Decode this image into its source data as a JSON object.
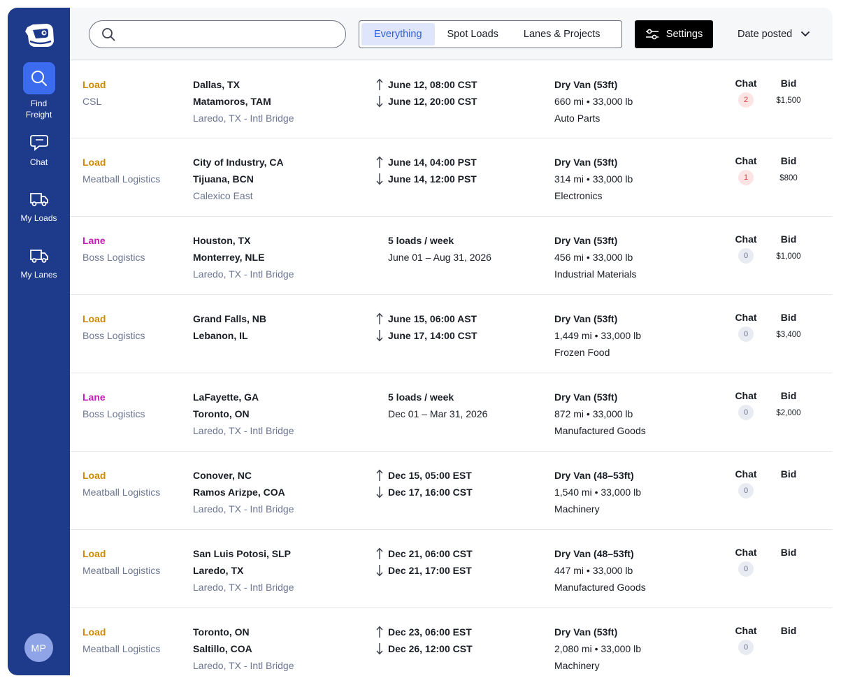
{
  "sidebar": {
    "items": [
      {
        "label": "Find\nFreight",
        "icon": "search-icon",
        "active": true
      },
      {
        "label": "Chat",
        "icon": "chat-icon",
        "active": false
      },
      {
        "label": "My Loads",
        "icon": "truck-icon",
        "active": false
      },
      {
        "label": "My Lanes",
        "icon": "truck-icon",
        "active": false
      }
    ],
    "avatar_initials": "MP"
  },
  "header": {
    "search_placeholder": "",
    "tabs": [
      {
        "label": "Everything",
        "active": true
      },
      {
        "label": "Spot Loads",
        "active": false
      },
      {
        "label": "Lanes & Projects",
        "active": false
      }
    ],
    "settings_label": "Settings",
    "sort_label": "Date posted"
  },
  "colors": {
    "sidebar": "#1e3a8a",
    "active_nav": "#3b6cf0",
    "load": "#c98a06",
    "lane": "#c21db5",
    "active_tab_text": "#2f5fd8"
  },
  "rows": [
    {
      "type": "Load",
      "company": "CSL",
      "origin": "Dallas, TX",
      "destination": "Matamoros, TAM",
      "crossing": "Laredo, TX - Intl Bridge",
      "pickup": "June 12, 08:00 CST",
      "delivery": "June 12, 20:00 CST",
      "schedule": "",
      "range": "",
      "equipment": "Dry Van  (53ft)",
      "distance_weight": "660 mi • 33,000 lb",
      "commodity": "Auto Parts",
      "chat_label": "Chat",
      "chat_count": "2",
      "chat_unread": true,
      "bid_label": "Bid",
      "bid": "$1,500"
    },
    {
      "type": "Load",
      "company": "Meatball Logistics",
      "origin": "City of Industry, CA",
      "destination": "Tijuana, BCN",
      "crossing": "Calexico East",
      "pickup": "June 14, 04:00 PST",
      "delivery": "June 14, 12:00 PST",
      "schedule": "",
      "range": "",
      "equipment": "Dry Van  (53ft)",
      "distance_weight": "314 mi • 33,000 lb",
      "commodity": "Electronics",
      "chat_label": "Chat",
      "chat_count": "1",
      "chat_unread": true,
      "bid_label": "Bid",
      "bid": "$800"
    },
    {
      "type": "Lane",
      "company": "Boss Logistics",
      "origin": "Houston, TX",
      "destination": "Monterrey, NLE",
      "crossing": "Laredo, TX - Intl Bridge",
      "pickup": "",
      "delivery": "",
      "schedule": "5 loads / week",
      "range": "June 01 – Aug 31, 2026",
      "equipment": "Dry Van  (53ft)",
      "distance_weight": "456 mi • 33,000 lb",
      "commodity": "Industrial Materials",
      "chat_label": "Chat",
      "chat_count": "0",
      "chat_unread": false,
      "bid_label": "Bid",
      "bid": "$1,000"
    },
    {
      "type": "Load",
      "company": "Boss Logistics",
      "origin": "Grand Falls, NB",
      "destination": "Lebanon, IL",
      "crossing": "",
      "pickup": "June 15, 06:00 AST",
      "delivery": "June 17, 14:00 CST",
      "schedule": "",
      "range": "",
      "equipment": "Dry Van  (53ft)",
      "distance_weight": "1,449 mi • 33,000 lb",
      "commodity": "Frozen Food",
      "chat_label": "Chat",
      "chat_count": "0",
      "chat_unread": false,
      "bid_label": "Bid",
      "bid": "$3,400"
    },
    {
      "type": "Lane",
      "company": "Boss Logistics",
      "origin": "LaFayette, GA",
      "destination": "Toronto, ON",
      "crossing": "Laredo, TX - Intl Bridge",
      "pickup": "",
      "delivery": "",
      "schedule": "5 loads / week",
      "range": "Dec 01 – Mar 31, 2026",
      "equipment": "Dry Van  (53ft)",
      "distance_weight": "872 mi • 33,000 lb",
      "commodity": "Manufactured Goods",
      "chat_label": "Chat",
      "chat_count": "0",
      "chat_unread": false,
      "bid_label": "Bid",
      "bid": "$2,000"
    },
    {
      "type": "Load",
      "company": "Meatball Logistics",
      "origin": "Conover, NC",
      "destination": "Ramos Arizpe, COA",
      "crossing": "Laredo, TX - Intl Bridge",
      "pickup": "Dec 15, 05:00 EST",
      "delivery": "Dec 17, 16:00 CST",
      "schedule": "",
      "range": "",
      "equipment": "Dry Van  (48–53ft)",
      "distance_weight": "1,540 mi • 33,000 lb",
      "commodity": "Machinery",
      "chat_label": "Chat",
      "chat_count": "0",
      "chat_unread": false,
      "bid_label": "Bid",
      "bid": ""
    },
    {
      "type": "Load",
      "company": "Meatball Logistics",
      "origin": "San Luis Potosi, SLP",
      "destination": "Laredo, TX",
      "crossing": "Laredo, TX - Intl Bridge",
      "pickup": "Dec 21, 06:00 CST",
      "delivery": "Dec 21, 17:00 EST",
      "schedule": "",
      "range": "",
      "equipment": "Dry Van  (48–53ft)",
      "distance_weight": "447 mi • 33,000 lb",
      "commodity": "Manufactured Goods",
      "chat_label": "Chat",
      "chat_count": "0",
      "chat_unread": false,
      "bid_label": "Bid",
      "bid": ""
    },
    {
      "type": "Load",
      "company": "Meatball Logistics",
      "origin": "Toronto, ON",
      "destination": "Saltillo, COA",
      "crossing": "Laredo, TX - Intl Bridge",
      "pickup": "Dec 23, 06:00 EST",
      "delivery": "Dec 26, 12:00 CST",
      "schedule": "",
      "range": "",
      "equipment": "Dry Van  (53ft)",
      "distance_weight": "2,080 mi • 33,000 lb",
      "commodity": "Machinery",
      "chat_label": "Chat",
      "chat_count": "0",
      "chat_unread": false,
      "bid_label": "Bid",
      "bid": ""
    }
  ]
}
